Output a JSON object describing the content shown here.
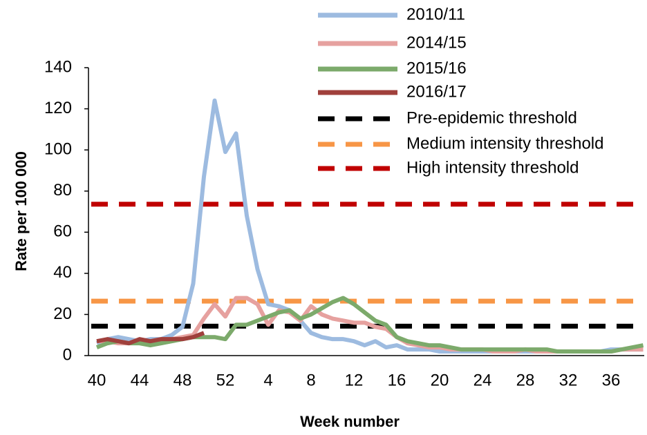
{
  "chart_data": {
    "type": "line",
    "y_label": "Rate per 100 000",
    "x_label": "Week number",
    "categories": [
      "40",
      null,
      null,
      null,
      "44",
      null,
      null,
      null,
      "48",
      null,
      null,
      null,
      "52",
      null,
      null,
      null,
      "4",
      null,
      null,
      null,
      "8",
      null,
      null,
      null,
      "12",
      null,
      null,
      null,
      "16",
      null,
      null,
      null,
      "20",
      null,
      null,
      null,
      "24",
      null,
      null,
      null,
      "28",
      null,
      null,
      null,
      "32",
      null,
      null,
      null,
      "36",
      null,
      null,
      null
    ],
    "ylim": [
      0,
      140
    ],
    "yticks": [
      0,
      20,
      40,
      60,
      80,
      100,
      120,
      140
    ],
    "series": [
      {
        "name": "2010/11",
        "color": "#9dbbe0",
        "values": [
          6,
          8,
          9,
          8,
          7,
          8,
          8,
          10,
          14,
          35,
          87,
          124,
          99,
          108,
          68,
          42,
          25,
          24,
          22,
          17,
          11,
          9,
          8,
          8,
          7,
          5,
          7,
          4,
          5,
          3,
          3,
          3,
          2,
          2,
          2,
          2,
          2,
          2,
          2,
          2,
          2,
          2,
          2,
          2,
          2,
          2,
          2,
          2,
          3,
          3,
          3,
          3
        ]
      },
      {
        "name": "2014/15",
        "color": "#e6a19f",
        "values": [
          7,
          7,
          6,
          6,
          8,
          7,
          8,
          8,
          9,
          10,
          18,
          25,
          19,
          28,
          28,
          25,
          15,
          22,
          21,
          17,
          24,
          20,
          18,
          17,
          16,
          16,
          14,
          13,
          9,
          6,
          5,
          4,
          4,
          3,
          3,
          3,
          3,
          2,
          2,
          2,
          3,
          2,
          2,
          2,
          2,
          2,
          2,
          2,
          2,
          3,
          3,
          3
        ]
      },
      {
        "name": "2015/16",
        "color": "#7caa6b",
        "values": [
          4,
          6,
          7,
          6,
          6,
          5,
          6,
          7,
          8,
          9,
          9,
          9,
          8,
          15,
          15,
          17,
          19,
          21,
          22,
          18,
          20,
          23,
          26,
          28,
          25,
          21,
          17,
          15,
          9,
          7,
          6,
          5,
          5,
          4,
          3,
          3,
          3,
          3,
          3,
          3,
          3,
          3,
          3,
          2,
          2,
          2,
          2,
          2,
          2,
          3,
          4,
          5
        ]
      },
      {
        "name": "2016/17",
        "color": "#a0403c",
        "values": [
          7,
          8,
          7,
          6,
          8,
          7,
          8,
          8,
          8,
          9,
          11,
          null,
          null,
          null,
          null,
          null,
          null,
          null,
          null,
          null,
          null,
          null,
          null,
          null,
          null,
          null,
          null,
          null,
          null,
          null,
          null,
          null,
          null,
          null,
          null,
          null,
          null,
          null,
          null,
          null,
          null,
          null,
          null,
          null,
          null,
          null,
          null,
          null,
          null,
          null,
          null,
          null
        ]
      }
    ],
    "thresholds": [
      {
        "name": "Pre-epidemic threshold",
        "color": "#000000",
        "value": 14.3
      },
      {
        "name": "Medium intensity threshold",
        "color": "#f79646",
        "value": 26.5
      },
      {
        "name": "High intensity threshold",
        "color": "#c00000",
        "value": 73.6
      }
    ]
  }
}
